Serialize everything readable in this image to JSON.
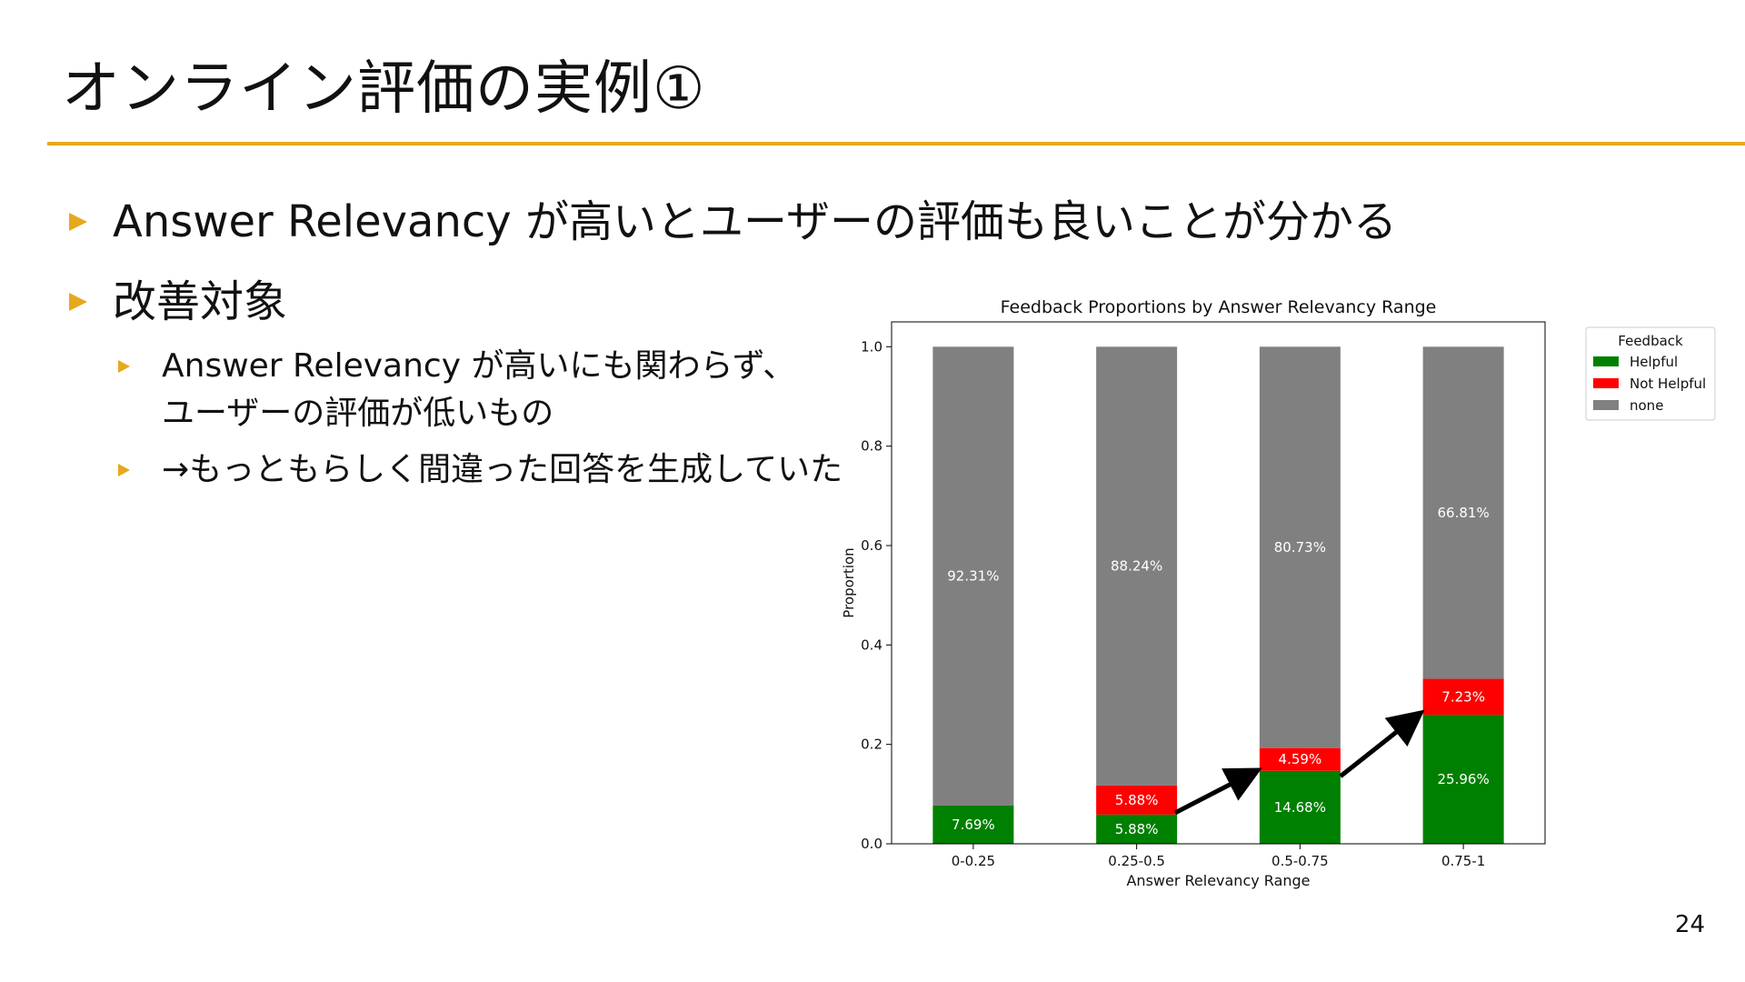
{
  "slide": {
    "title": "オンライン評価の実例①",
    "bullets": [
      "Answer Relevancy が高いとユーザーの評価も良いことが分かる",
      "改善対象"
    ],
    "sub_bullets": [
      "Answer Relevancy が高いにも関わらず、",
      "ユーザーの評価が低いもの",
      "→もっともらしく間違った回答を生成していた"
    ],
    "page_number": "24",
    "accent_color": "#e6a81e"
  },
  "chart_data": {
    "type": "bar",
    "stacked": true,
    "title": "Feedback Proportions by Answer Relevancy Range",
    "xlabel": "Answer Relevancy Range",
    "ylabel": "Proportion",
    "ylim": [
      0,
      1.05
    ],
    "yticks": [
      "0.0",
      "0.2",
      "0.4",
      "0.6",
      "0.8",
      "1.0"
    ],
    "categories": [
      "0-0.25",
      "0.25-0.5",
      "0.5-0.75",
      "0.75-1"
    ],
    "legend": {
      "title": "Feedback",
      "placement": "outside-top-right"
    },
    "series": [
      {
        "name": "Helpful",
        "color": "#008000",
        "values": [
          0.0769,
          0.0588,
          0.1468,
          0.2596
        ],
        "labels": [
          "7.69%",
          "5.88%",
          "14.68%",
          "25.96%"
        ]
      },
      {
        "name": "Not Helpful",
        "color": "#ff0000",
        "values": [
          0,
          0.0588,
          0.0459,
          0.0723
        ],
        "labels": [
          "",
          "5.88%",
          "4.59%",
          "7.23%"
        ]
      },
      {
        "name": "none",
        "color": "#808080",
        "values": [
          0.9231,
          0.8824,
          0.8073,
          0.6681
        ],
        "labels": [
          "92.31%",
          "88.24%",
          "80.73%",
          "66.81%"
        ]
      }
    ]
  }
}
